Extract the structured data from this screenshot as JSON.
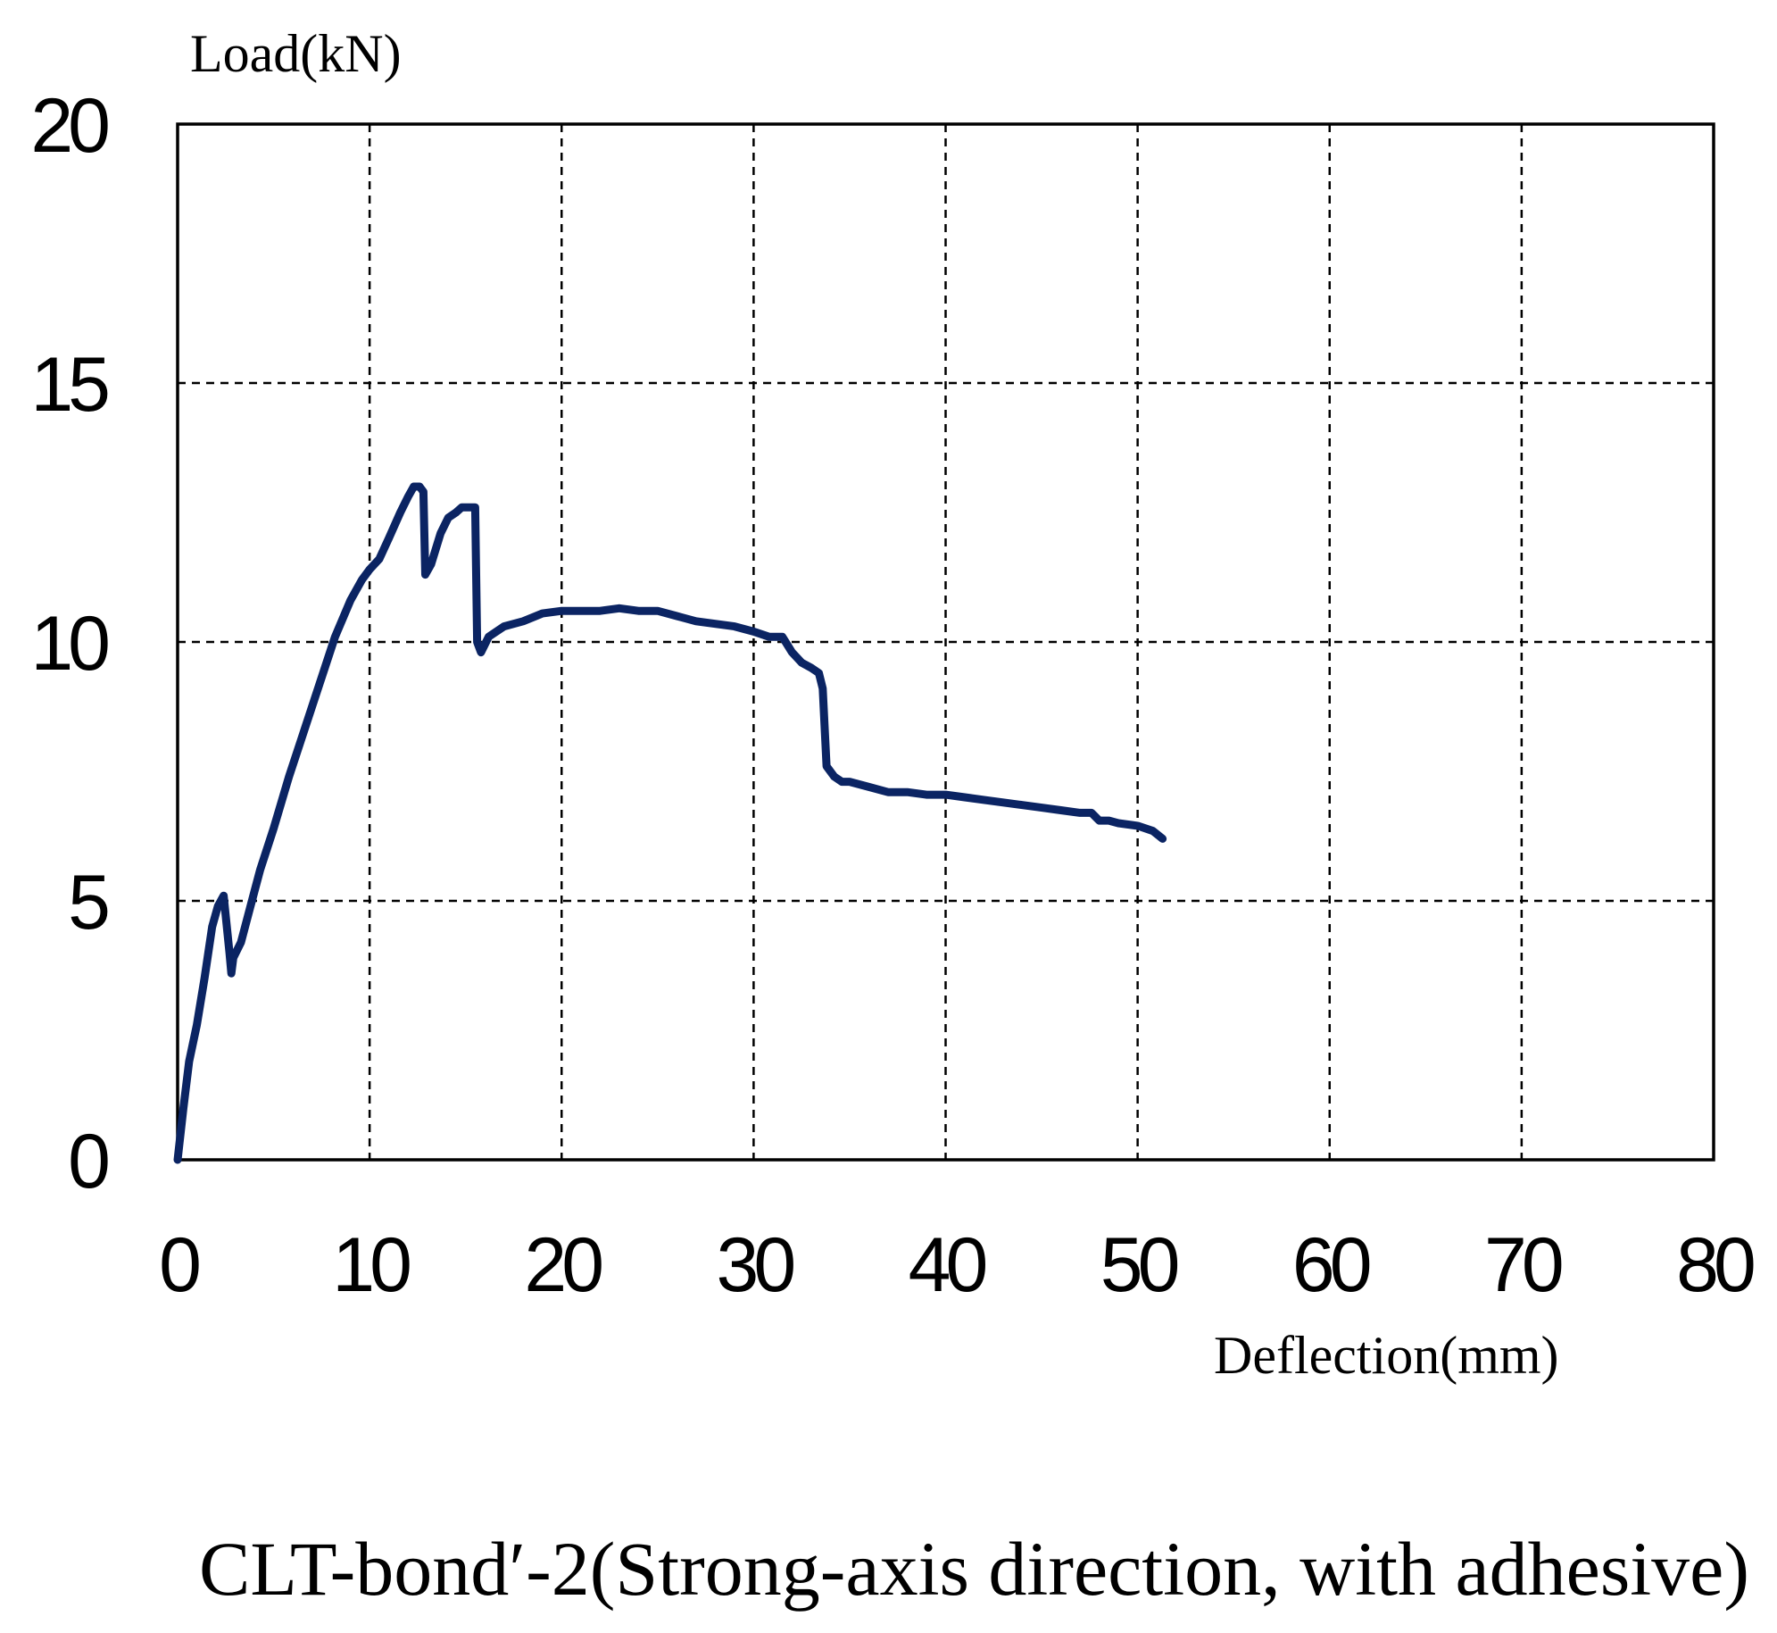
{
  "chart_data": {
    "type": "line",
    "title": "CLT-bond′-2(Strong-axis direction, with adhesive)",
    "xlabel": "Deflection(mm)",
    "ylabel": "Load(kN)",
    "xlim": [
      0,
      80
    ],
    "ylim": [
      0,
      20
    ],
    "x_ticks": [
      "0",
      "10",
      "20",
      "30",
      "40",
      "50",
      "60",
      "70",
      "80"
    ],
    "y_ticks": [
      "0",
      "5",
      "10",
      "15",
      "20"
    ],
    "grid": true,
    "legend": "none",
    "series": [
      {
        "color": "#0b2463",
        "x": [
          0,
          0.3,
          0.6,
          1.0,
          1.4,
          1.8,
          2.1,
          2.4,
          2.7,
          2.8,
          2.9,
          3.3,
          3.8,
          4.3,
          5.0,
          5.8,
          6.6,
          7.4,
          8.2,
          9.0,
          9.6,
          10.0,
          10.5,
          11.0,
          11.6,
          12.0,
          12.3,
          12.6,
          12.8,
          12.9,
          13.2,
          13.7,
          14.1,
          14.5,
          14.8,
          15.2,
          15.5,
          15.6,
          15.8,
          16.2,
          17.0,
          18.0,
          19.0,
          20.0,
          21.0,
          22.0,
          23.0,
          24.0,
          25.0,
          26.0,
          27.0,
          28.0,
          29.0,
          30.0,
          30.8,
          31.5,
          32.0,
          32.5,
          33.0,
          33.4,
          33.6,
          33.8,
          34.2,
          34.6,
          35.0,
          35.5,
          36.0,
          37.0,
          38.0,
          39.0,
          40.0,
          41.0,
          42.0,
          43.0,
          44.0,
          45.0,
          46.0,
          47.0,
          47.6,
          48.0,
          48.5,
          49.0,
          50.0,
          50.8,
          51.3
        ],
        "values": [
          0,
          1.0,
          1.9,
          2.6,
          3.5,
          4.5,
          4.9,
          5.1,
          4.0,
          3.6,
          3.9,
          4.2,
          4.9,
          5.6,
          6.4,
          7.4,
          8.3,
          9.2,
          10.1,
          10.8,
          11.2,
          11.4,
          11.6,
          12.0,
          12.5,
          12.8,
          13.0,
          13.0,
          12.9,
          11.3,
          11.5,
          12.1,
          12.4,
          12.5,
          12.6,
          12.6,
          12.6,
          10.0,
          9.8,
          10.1,
          10.3,
          10.4,
          10.55,
          10.6,
          10.6,
          10.6,
          10.65,
          10.6,
          10.6,
          10.5,
          10.4,
          10.35,
          10.3,
          10.2,
          10.1,
          10.1,
          9.8,
          9.6,
          9.5,
          9.4,
          9.1,
          7.6,
          7.4,
          7.3,
          7.3,
          7.25,
          7.2,
          7.1,
          7.1,
          7.05,
          7.05,
          7.0,
          6.95,
          6.9,
          6.85,
          6.8,
          6.75,
          6.7,
          6.7,
          6.55,
          6.55,
          6.5,
          6.45,
          6.35,
          6.2
        ]
      }
    ]
  }
}
